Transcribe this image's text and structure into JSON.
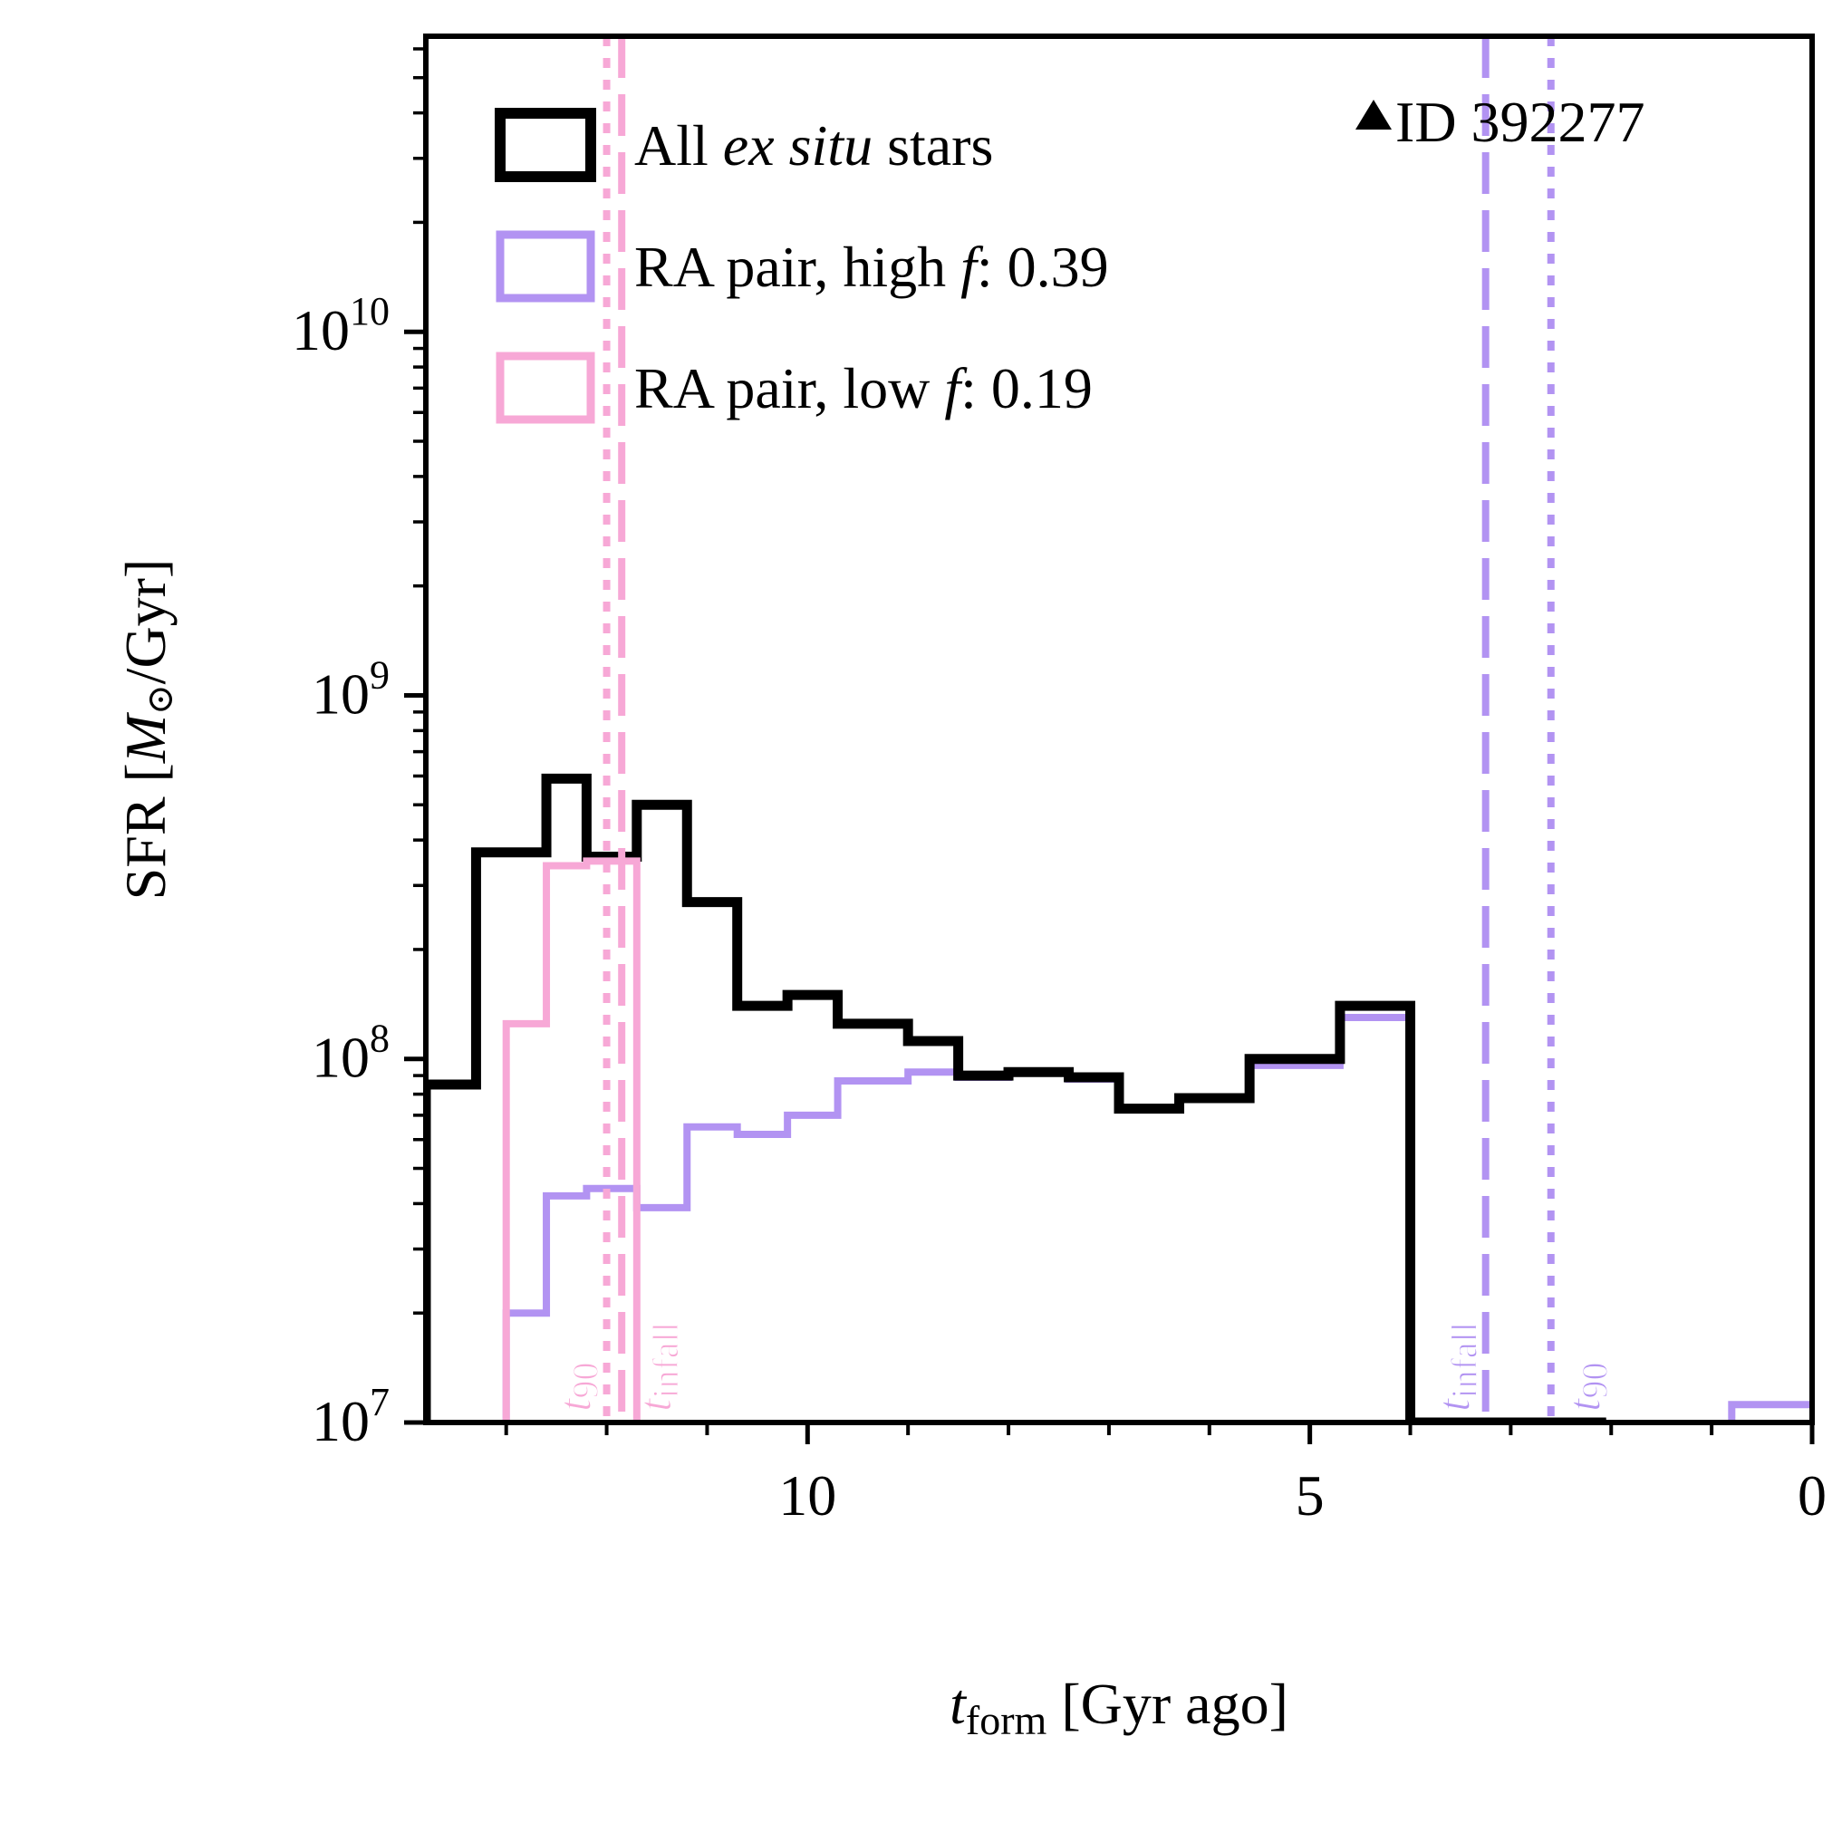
{
  "chart_data": {
    "type": "line",
    "plot_style": "step-histogram",
    "title": "",
    "id_label": "ID 392277",
    "id_marker": "triangle-up",
    "xlabel": {
      "var": "t",
      "sub": "form",
      "unit": " [Gyr ago]"
    },
    "ylabel": {
      "prefix": "SFR [",
      "var": "M",
      "sym": "⊙",
      "suffix": "/Gyr]"
    },
    "x_axis": {
      "scale": "linear",
      "inverted": true,
      "xlim": [
        13.8,
        0
      ],
      "major_ticks": [
        10,
        5,
        0
      ],
      "major_labels": [
        "10",
        "5",
        "0"
      ],
      "minor_step": 1
    },
    "y_axis": {
      "scale": "log",
      "ylim": [
        10000000.0,
        65000000000.0
      ],
      "major_ticks": [
        10000000.0,
        100000000.0,
        1000000000.0,
        10000000000.0
      ],
      "major_labels": [
        {
          "base": "10",
          "exp": "7"
        },
        {
          "base": "10",
          "exp": "8"
        },
        {
          "base": "10",
          "exp": "9"
        },
        {
          "base": "10",
          "exp": "10"
        }
      ]
    },
    "legend_position": "upper-left",
    "colors": {
      "all": "#000000",
      "high": "#b293f2",
      "low": "#f7a8d6"
    },
    "series": [
      {
        "name": "all",
        "legend": [
          "All ",
          "ex situ",
          " stars"
        ],
        "color": "#000000",
        "edges": [
          13.8,
          13.3,
          12.6,
          12.2,
          11.7,
          11.2,
          10.7,
          10.2,
          9.7,
          9.0,
          8.5,
          8.0,
          7.4,
          6.9,
          6.3,
          5.6,
          4.7,
          4.0,
          3.4,
          2.7,
          2.05
        ],
        "values": [
          85000000.0,
          370000000.0,
          590000000.0,
          360000000.0,
          500000000.0,
          270000000.0,
          140000000.0,
          150000000.0,
          125000000.0,
          112000000.0,
          90000000.0,
          92000000.0,
          89000000.0,
          73000000.0,
          78000000.0,
          100000000.0,
          140000000.0,
          10000000.0,
          10000000.0,
          10000000.0
        ]
      },
      {
        "name": "high",
        "legend": [
          "RA pair, high ",
          "f",
          ": 0.39"
        ],
        "color": "#b293f2",
        "edges": [
          13.0,
          12.6,
          12.2,
          11.7,
          11.2,
          10.7,
          10.2,
          9.7,
          9.0,
          8.5,
          8.0,
          7.4,
          6.9,
          6.3,
          5.6,
          4.7,
          4.0,
          3.4,
          2.7,
          2.05
        ],
        "values": [
          20000000.0,
          42000000.0,
          44000000.0,
          39000000.0,
          65000000.0,
          62000000.0,
          70000000.0,
          87000000.0,
          92000000.0,
          89000000.0,
          92000000.0,
          88000000.0,
          73000000.0,
          78000000.0,
          96000000.0,
          130000000.0,
          10000000.0,
          10000000.0,
          10000000.0
        ],
        "tail": {
          "edges": [
            0.8,
            0.0
          ],
          "value": 11200000.0
        }
      },
      {
        "name": "low",
        "legend": [
          "RA pair, low ",
          "f",
          ": 0.19"
        ],
        "color": "#f7a8d6",
        "edges": [
          13.0,
          12.6,
          12.2,
          11.7
        ],
        "values": [
          125000000.0,
          340000000.0,
          350000000.0
        ]
      }
    ],
    "vlines": [
      {
        "series": "low",
        "kind": "t90",
        "style": "dotted",
        "x": 12.0,
        "label_var": "t",
        "label_sub": "90",
        "label_side": "left"
      },
      {
        "series": "low",
        "kind": "tinfall",
        "style": "dashed",
        "x": 11.85,
        "label_var": "t",
        "label_sub": "infall",
        "label_side": "right"
      },
      {
        "series": "high",
        "kind": "tinfall",
        "style": "dashed",
        "x": 3.25,
        "label_var": "t",
        "label_sub": "infall",
        "label_side": "left"
      },
      {
        "series": "high",
        "kind": "t90",
        "style": "dotted",
        "x": 2.6,
        "label_var": "t",
        "label_sub": "90",
        "label_side": "right"
      }
    ]
  }
}
